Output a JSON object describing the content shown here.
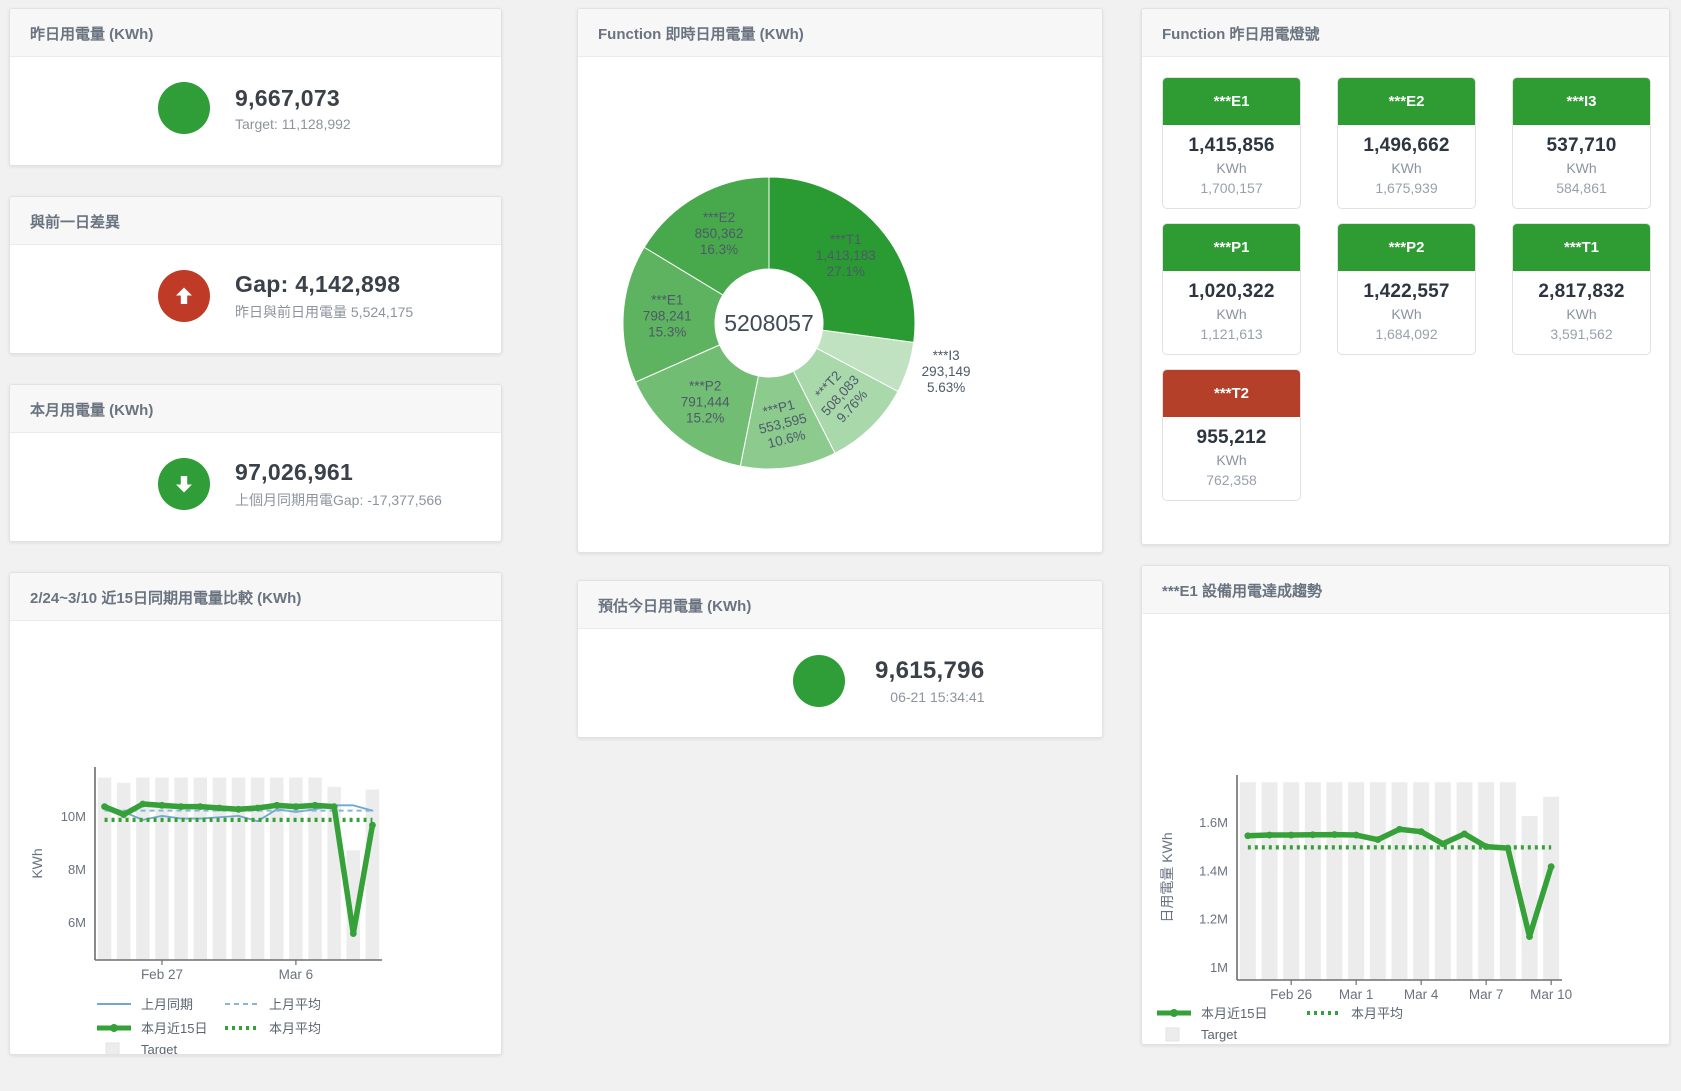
{
  "cards": {
    "yesterday": {
      "title": "昨日用電量 (KWh)",
      "value": "9,667,073",
      "subtext": "Target: 11,128,992",
      "status_color": "#2f9e38"
    },
    "day_gap": {
      "title": "與前一日差異",
      "value": "Gap: 4,142,898",
      "subtext": "昨日與前日用電量 5,524,175",
      "status_color": "#bf3b28"
    },
    "month": {
      "title": "本月用電量 (KWh)",
      "value": "97,026,961",
      "subtext": "上個月同期用電Gap: -17,377,566",
      "status_color": "#2f9e38"
    },
    "forecast": {
      "title": "預估今日用電量 (KWh)",
      "value": "9,615,796",
      "subtext": "06-21 15:34:41",
      "status_color": "#2f9e38"
    }
  },
  "lights": {
    "title": "Function 昨日用電燈號",
    "ok_color": "#2e9b33",
    "alert_color": "#b5402a",
    "unit": "KWh",
    "tiles": [
      {
        "name": "***E1",
        "value": "1,415,856",
        "target": "1,700,157",
        "status": "ok"
      },
      {
        "name": "***E2",
        "value": "1,496,662",
        "target": "1,675,939",
        "status": "ok"
      },
      {
        "name": "***I3",
        "value": "537,710",
        "target": "584,861",
        "status": "ok"
      },
      {
        "name": "***P1",
        "value": "1,020,322",
        "target": "1,121,613",
        "status": "ok"
      },
      {
        "name": "***P2",
        "value": "1,422,557",
        "target": "1,684,092",
        "status": "ok"
      },
      {
        "name": "***T1",
        "value": "2,817,832",
        "target": "3,591,562",
        "status": "ok"
      },
      {
        "name": "***T2",
        "value": "955,212",
        "target": "762,358",
        "status": "alert"
      }
    ]
  },
  "chart_data": [
    {
      "id": "realtime_donut",
      "type": "pie",
      "title": "Function 即時日用電量 (KWh)",
      "center_label": "5208057",
      "slices": [
        {
          "name": "***T1",
          "value": "1,413,183",
          "pct": "27.1%",
          "share": 27.1,
          "color": "#2a9a33"
        },
        {
          "name": "***I3",
          "value": "293,149",
          "pct": "5.63%",
          "share": 5.63,
          "color": "#c0e2c1"
        },
        {
          "name": "***T2",
          "value": "508,083",
          "pct": "9.76%",
          "share": 9.76,
          "color": "#a9d8ab"
        },
        {
          "name": "***P1",
          "value": "553,595",
          "pct": "10.6%",
          "share": 10.6,
          "color": "#8cca8e"
        },
        {
          "name": "***P2",
          "value": "791,444",
          "pct": "15.2%",
          "share": 15.2,
          "color": "#72bd74"
        },
        {
          "name": "***E1",
          "value": "798,241",
          "pct": "15.3%",
          "share": 15.3,
          "color": "#5db360"
        },
        {
          "name": "***E2",
          "value": "850,362",
          "pct": "16.3%",
          "share": 16.3,
          "color": "#47a94b"
        }
      ]
    },
    {
      "id": "compare15",
      "type": "line",
      "title": "2/24~3/10 近15日同期用電量比較 (KWh)",
      "ylabel": "KWh",
      "ylim": [
        4600000,
        11900000
      ],
      "yticks": [
        {
          "v": 6000000,
          "label": "6M"
        },
        {
          "v": 8000000,
          "label": "8M"
        },
        {
          "v": 10000000,
          "label": "10M"
        }
      ],
      "xticks": [
        {
          "i": 3,
          "label": "Feb 27"
        },
        {
          "i": 10,
          "label": "Mar 6"
        }
      ],
      "bar_color": "#ececec",
      "target_name": "Target",
      "target_bars": [
        11500000,
        11300000,
        11500000,
        11500000,
        11500000,
        11500000,
        11500000,
        11500000,
        11500000,
        11500000,
        11500000,
        11500000,
        11150000,
        8750000,
        11050000
      ],
      "series": [
        {
          "name": "上月同期",
          "color": "#6fa8d0",
          "style": "solid",
          "width": 1.8,
          "values": [
            10450000,
            10200000,
            9900000,
            10050000,
            9950000,
            9950000,
            10000000,
            10050000,
            9850000,
            10300000,
            10200000,
            10300000,
            10450000,
            10450000,
            10250000
          ]
        },
        {
          "name": "上月平均",
          "color": "#85b5d8",
          "style": "dashed",
          "width": 2,
          "const": 10250000
        },
        {
          "name": "本月近15日",
          "color": "#35a138",
          "style": "solid",
          "width": 5.5,
          "main": true,
          "values": [
            10400000,
            10100000,
            10500000,
            10450000,
            10400000,
            10400000,
            10350000,
            10300000,
            10350000,
            10450000,
            10400000,
            10450000,
            10400000,
            5600000,
            9700000
          ]
        },
        {
          "name": "本月平均",
          "color": "#35a138",
          "style": "dotted",
          "width": 4.2,
          "const": 9900000
        }
      ]
    },
    {
      "id": "e1trend",
      "type": "line",
      "title": "***E1 設備用電達成趨勢",
      "ylabel": "日用電量 KWh",
      "ylim": [
        950000,
        1800000
      ],
      "yticks": [
        {
          "v": 1000000,
          "label": "1M"
        },
        {
          "v": 1200000,
          "label": "1.2M"
        },
        {
          "v": 1400000,
          "label": "1.4M"
        },
        {
          "v": 1600000,
          "label": "1.6M"
        }
      ],
      "xticks": [
        {
          "i": 2,
          "label": "Feb 26"
        },
        {
          "i": 5,
          "label": "Mar 1"
        },
        {
          "i": 8,
          "label": "Mar 4"
        },
        {
          "i": 11,
          "label": "Mar 7"
        },
        {
          "i": 14,
          "label": "Mar 10"
        }
      ],
      "bar_color": "#ececec",
      "target_name": "Target",
      "target_bars": [
        1770000,
        1770000,
        1770000,
        1770000,
        1770000,
        1770000,
        1770000,
        1770000,
        1770000,
        1770000,
        1770000,
        1770000,
        1770000,
        1630000,
        1710000
      ],
      "series": [
        {
          "name": "本月近15日",
          "color": "#35a138",
          "style": "solid",
          "width": 5.5,
          "main": true,
          "values": [
            1548000,
            1551000,
            1551000,
            1552000,
            1553000,
            1551000,
            1532000,
            1575000,
            1565000,
            1515000,
            1556000,
            1503000,
            1497000,
            1130000,
            1420000
          ]
        },
        {
          "name": "本月平均",
          "color": "#35a138",
          "style": "dotted",
          "width": 4.2,
          "const": 1500000
        }
      ]
    }
  ]
}
